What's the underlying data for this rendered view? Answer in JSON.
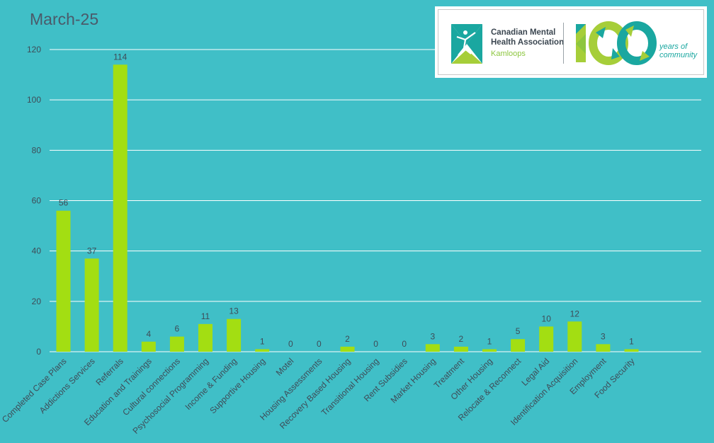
{
  "title": "March-25",
  "logo": {
    "org_line1": "Canadian Mental",
    "org_line2": "Health Association",
    "org_line3": "Kamloops",
    "anniversary_number": "100",
    "anniversary_line1": "years of",
    "anniversary_line2": "community",
    "colors": {
      "teal": "#1aa7a0",
      "green": "#a6ce39",
      "dark": "#3b4650"
    }
  },
  "chart_data": {
    "type": "bar",
    "title": "March-25",
    "xlabel": "",
    "ylabel": "",
    "ylim": [
      0,
      120
    ],
    "yticks": [
      0,
      20,
      40,
      60,
      80,
      100,
      120
    ],
    "grid": true,
    "bar_color": "#a3de12",
    "background": "#40bfc7",
    "gridline_color": "#ffffff",
    "data_labels": true,
    "categories": [
      "Completed Case Plans",
      "Addictions Services",
      "Referrals",
      "Education and Trainings",
      "Cultural connections",
      "Psychosocial Programming",
      "Income & Funding",
      "Supportive Housing",
      "Motel",
      "Housing Assessments",
      "Recovery Based Housing",
      "Transitional Housing",
      "Rent Subsidies",
      "Market Housing",
      "Treatment",
      "Other Housing",
      "Relocate & Reconnect",
      "Legal Aid",
      "Identification Acquisition",
      "Employment",
      "Food Security"
    ],
    "values": [
      56,
      37,
      114,
      4,
      6,
      11,
      13,
      1,
      0,
      0,
      2,
      0,
      0,
      3,
      2,
      1,
      5,
      10,
      12,
      3,
      1
    ]
  }
}
